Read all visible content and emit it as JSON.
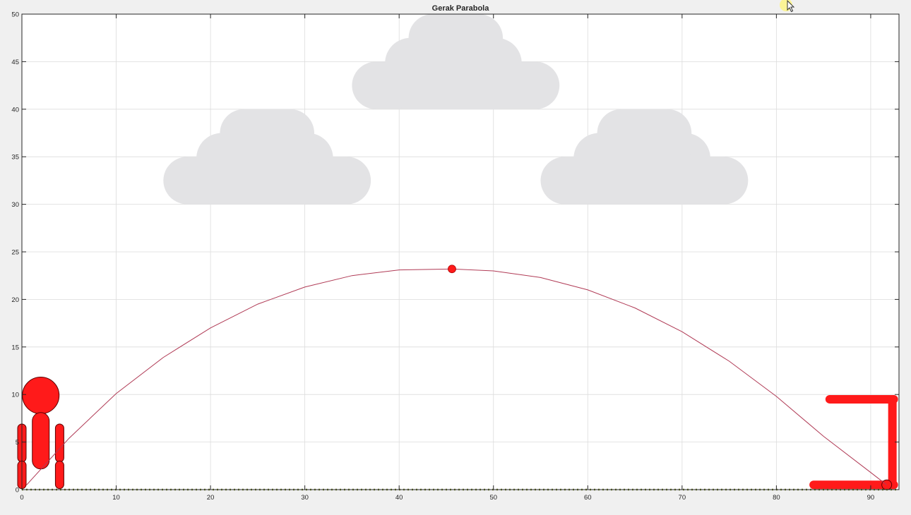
{
  "window": {
    "title": "Gerak Parabola"
  },
  "chart_data": {
    "type": "line",
    "title": "Gerak Parabola",
    "xlabel": "",
    "ylabel": "",
    "xlim": [
      0,
      93
    ],
    "ylim": [
      0,
      50
    ],
    "xticks": [
      0,
      10,
      20,
      30,
      40,
      50,
      60,
      70,
      80,
      90
    ],
    "yticks": [
      0,
      5,
      10,
      15,
      20,
      25,
      30,
      35,
      40,
      45,
      50
    ],
    "grid": true,
    "series": [
      {
        "kind": "trajectory",
        "color": "#b03a55",
        "x": [
          0.5,
          5,
          10,
          15,
          20,
          25,
          30,
          35,
          40,
          45.6,
          50,
          55,
          60,
          65,
          70,
          75,
          80,
          85,
          90,
          91.7
        ],
        "y": [
          0.5,
          5.4,
          10.1,
          13.9,
          17.0,
          19.5,
          21.3,
          22.5,
          23.1,
          23.2,
          23.0,
          22.3,
          21.0,
          19.1,
          16.6,
          13.5,
          9.8,
          5.6,
          1.8,
          0.5
        ]
      },
      {
        "kind": "ground",
        "color": "#6b7a2a",
        "style": "dotted",
        "x": [
          0,
          93
        ],
        "y": [
          0,
          0
        ]
      }
    ],
    "ball": {
      "x": 45.6,
      "y": 23.2,
      "color": "#ff1a1a"
    },
    "clouds": [
      {
        "cx": 26,
        "cy": 31.5,
        "color": "#e3e3e5"
      },
      {
        "cx": 46,
        "cy": 41.5,
        "color": "#e3e3e5"
      },
      {
        "cx": 66,
        "cy": 31.5,
        "color": "#e3e3e5"
      }
    ],
    "thrower": {
      "x": 2.0,
      "color": "#ff1a1a"
    },
    "basket": {
      "x0": 83.5,
      "x1": 92.3,
      "y_bottom": 0.5,
      "y_top": 9.5,
      "color": "#ff1a1a"
    }
  }
}
